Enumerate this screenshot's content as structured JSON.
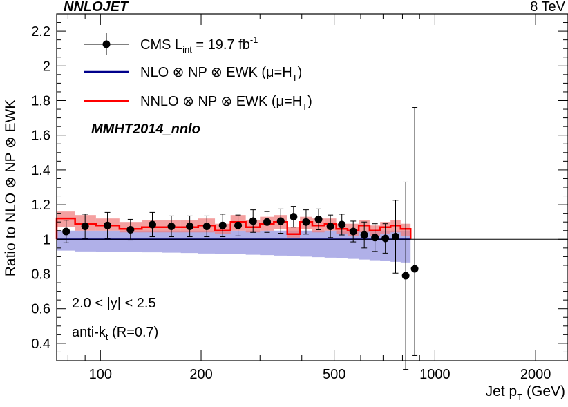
{
  "header": {
    "left": "NNLOJET",
    "right": "8 TeV"
  },
  "chart_data": {
    "type": "line",
    "title": "",
    "xlabel": "Jet p",
    "xlabel_sub": "T",
    "xlabel_unit": " (GeV)",
    "ylabel": "Ratio to NLO ⊗ NP ⊗ EWK",
    "xscale": "log",
    "xlim": [
      74,
      2500
    ],
    "ylim": [
      0.3,
      2.3
    ],
    "xticks": [
      {
        "value": 100,
        "label": "100"
      },
      {
        "value": 200,
        "label": "200"
      },
      {
        "value": 500,
        "label": "500"
      },
      {
        "value": 1000,
        "label": "1000"
      },
      {
        "value": 2000,
        "label": "2000"
      }
    ],
    "yticks": [
      {
        "value": 0.4,
        "label": "0.4"
      },
      {
        "value": 0.6,
        "label": "0.6"
      },
      {
        "value": 0.8,
        "label": "0.8"
      },
      {
        "value": 1.0,
        "label": "1"
      },
      {
        "value": 1.2,
        "label": "1.2"
      },
      {
        "value": 1.4,
        "label": "1.4"
      },
      {
        "value": 1.6,
        "label": "1.6"
      },
      {
        "value": 1.8,
        "label": "1.8"
      },
      {
        "value": 2.0,
        "label": "2"
      },
      {
        "value": 2.2,
        "label": "2.2"
      }
    ],
    "legend": [
      {
        "name": "CMS L",
        "sub": "int",
        "rest": " = 19.7 fb",
        "sup": "-1",
        "color": "#000000",
        "kind": "marker"
      },
      {
        "name": "NLO ⊗ NP ⊗ EWK (μ=",
        "hat": "H",
        "sub": "T",
        "tail": ")",
        "color": "#00008b",
        "kind": "line"
      },
      {
        "name": "NNLO ⊗ NP ⊗ EWK (μ=",
        "hat": "H",
        "sub": "T",
        "tail": ")",
        "color": "#ff0000",
        "kind": "line"
      }
    ],
    "pdf_label": "MMHT2014_nnlo",
    "rapidity_label": "2.0 < |y| < 2.5",
    "algo_label_main": "anti-k",
    "algo_label_sub": "t",
    "algo_label_tail": " (R=0.7)",
    "bin_edges": [
      74,
      84,
      97,
      114,
      133,
      153,
      174,
      196,
      220,
      245,
      272,
      300,
      330,
      362,
      395,
      430,
      468,
      507,
      548,
      592,
      638,
      686,
      737,
      790,
      846
    ],
    "nlo_band": {
      "name": "NLO ⊗ NP ⊗ EWK scale band",
      "color": "#6f6fd6",
      "low": [
        0.935,
        0.93,
        0.928,
        0.926,
        0.925,
        0.923,
        0.921,
        0.918,
        0.916,
        0.914,
        0.911,
        0.909,
        0.906,
        0.903,
        0.9,
        0.897,
        0.894,
        0.89,
        0.887,
        0.883,
        0.879,
        0.875,
        0.87,
        0.866
      ],
      "high": [
        1.05,
        1.05,
        1.05,
        1.05,
        1.05,
        1.05,
        1.05,
        1.05,
        1.05,
        1.05,
        1.05,
        1.05,
        1.05,
        1.05,
        1.05,
        1.05,
        1.05,
        1.05,
        1.05,
        1.05,
        1.05,
        1.05,
        1.05,
        1.05
      ]
    },
    "nnlo": {
      "name": "NNLO ⊗ NP ⊗ EWK",
      "color": "#ff0000",
      "central": [
        1.12,
        1.09,
        1.08,
        1.06,
        1.07,
        1.07,
        1.07,
        1.08,
        1.05,
        1.1,
        1.07,
        1.09,
        1.1,
        1.03,
        1.1,
        1.08,
        1.09,
        1.06,
        1.05,
        1.08,
        1.05,
        1.07,
        1.08,
        1.06
      ],
      "low": [
        1.07,
        1.05,
        1.05,
        1.04,
        1.04,
        1.04,
        1.04,
        1.04,
        1.03,
        1.05,
        1.04,
        1.05,
        1.06,
        1.01,
        1.06,
        1.04,
        1.05,
        1.03,
        1.02,
        1.04,
        1.02,
        1.03,
        1.04,
        1.02
      ],
      "high": [
        1.16,
        1.14,
        1.12,
        1.1,
        1.11,
        1.11,
        1.11,
        1.12,
        1.09,
        1.14,
        1.11,
        1.13,
        1.14,
        1.07,
        1.13,
        1.12,
        1.12,
        1.09,
        1.09,
        1.11,
        1.08,
        1.1,
        1.11,
        1.09
      ]
    },
    "nlo_line": {
      "name": "NLO ⊗ NP ⊗ EWK",
      "color": "#00008b",
      "value": 1.0
    },
    "cms": {
      "name": "CMS data",
      "color": "#000000",
      "x": [
        79,
        90,
        105,
        123,
        143,
        163,
        185,
        208,
        232,
        258,
        286,
        315,
        346,
        378,
        412,
        449,
        487,
        527,
        570,
        615,
        662,
        711,
        763,
        818
      ],
      "y": [
        1.045,
        1.075,
        1.08,
        1.055,
        1.085,
        1.075,
        1.075,
        1.075,
        1.08,
        1.08,
        1.105,
        1.1,
        1.105,
        1.13,
        1.1,
        1.115,
        1.075,
        1.085,
        1.045,
        1.025,
        1.01,
        1.005,
        1.015,
        0.79
      ],
      "err": [
        0.065,
        0.07,
        0.075,
        0.06,
        0.07,
        0.06,
        0.06,
        0.06,
        0.065,
        0.06,
        0.065,
        0.06,
        0.07,
        0.06,
        0.07,
        0.06,
        0.065,
        0.06,
        0.06,
        0.075,
        0.08,
        0.085,
        0.21,
        0.54
      ]
    },
    "extra_point": {
      "x": 870,
      "y": 0.83,
      "err_up": 0.93,
      "err_down": 0.5
    }
  }
}
